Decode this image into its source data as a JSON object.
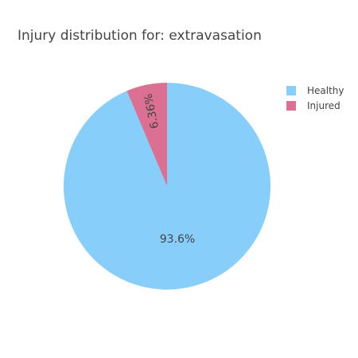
{
  "chart_data": {
    "type": "pie",
    "title": "Injury distribution for: extravasation",
    "labels": [
      "Healthy",
      "Injured"
    ],
    "values": [
      93.64,
      6.36
    ],
    "value_labels": [
      "93.6%",
      "6.36%"
    ],
    "colors": [
      "#87cefa",
      "#db7093"
    ],
    "legend_position": "top-right",
    "direction": "counterclockwise",
    "start": "top"
  }
}
